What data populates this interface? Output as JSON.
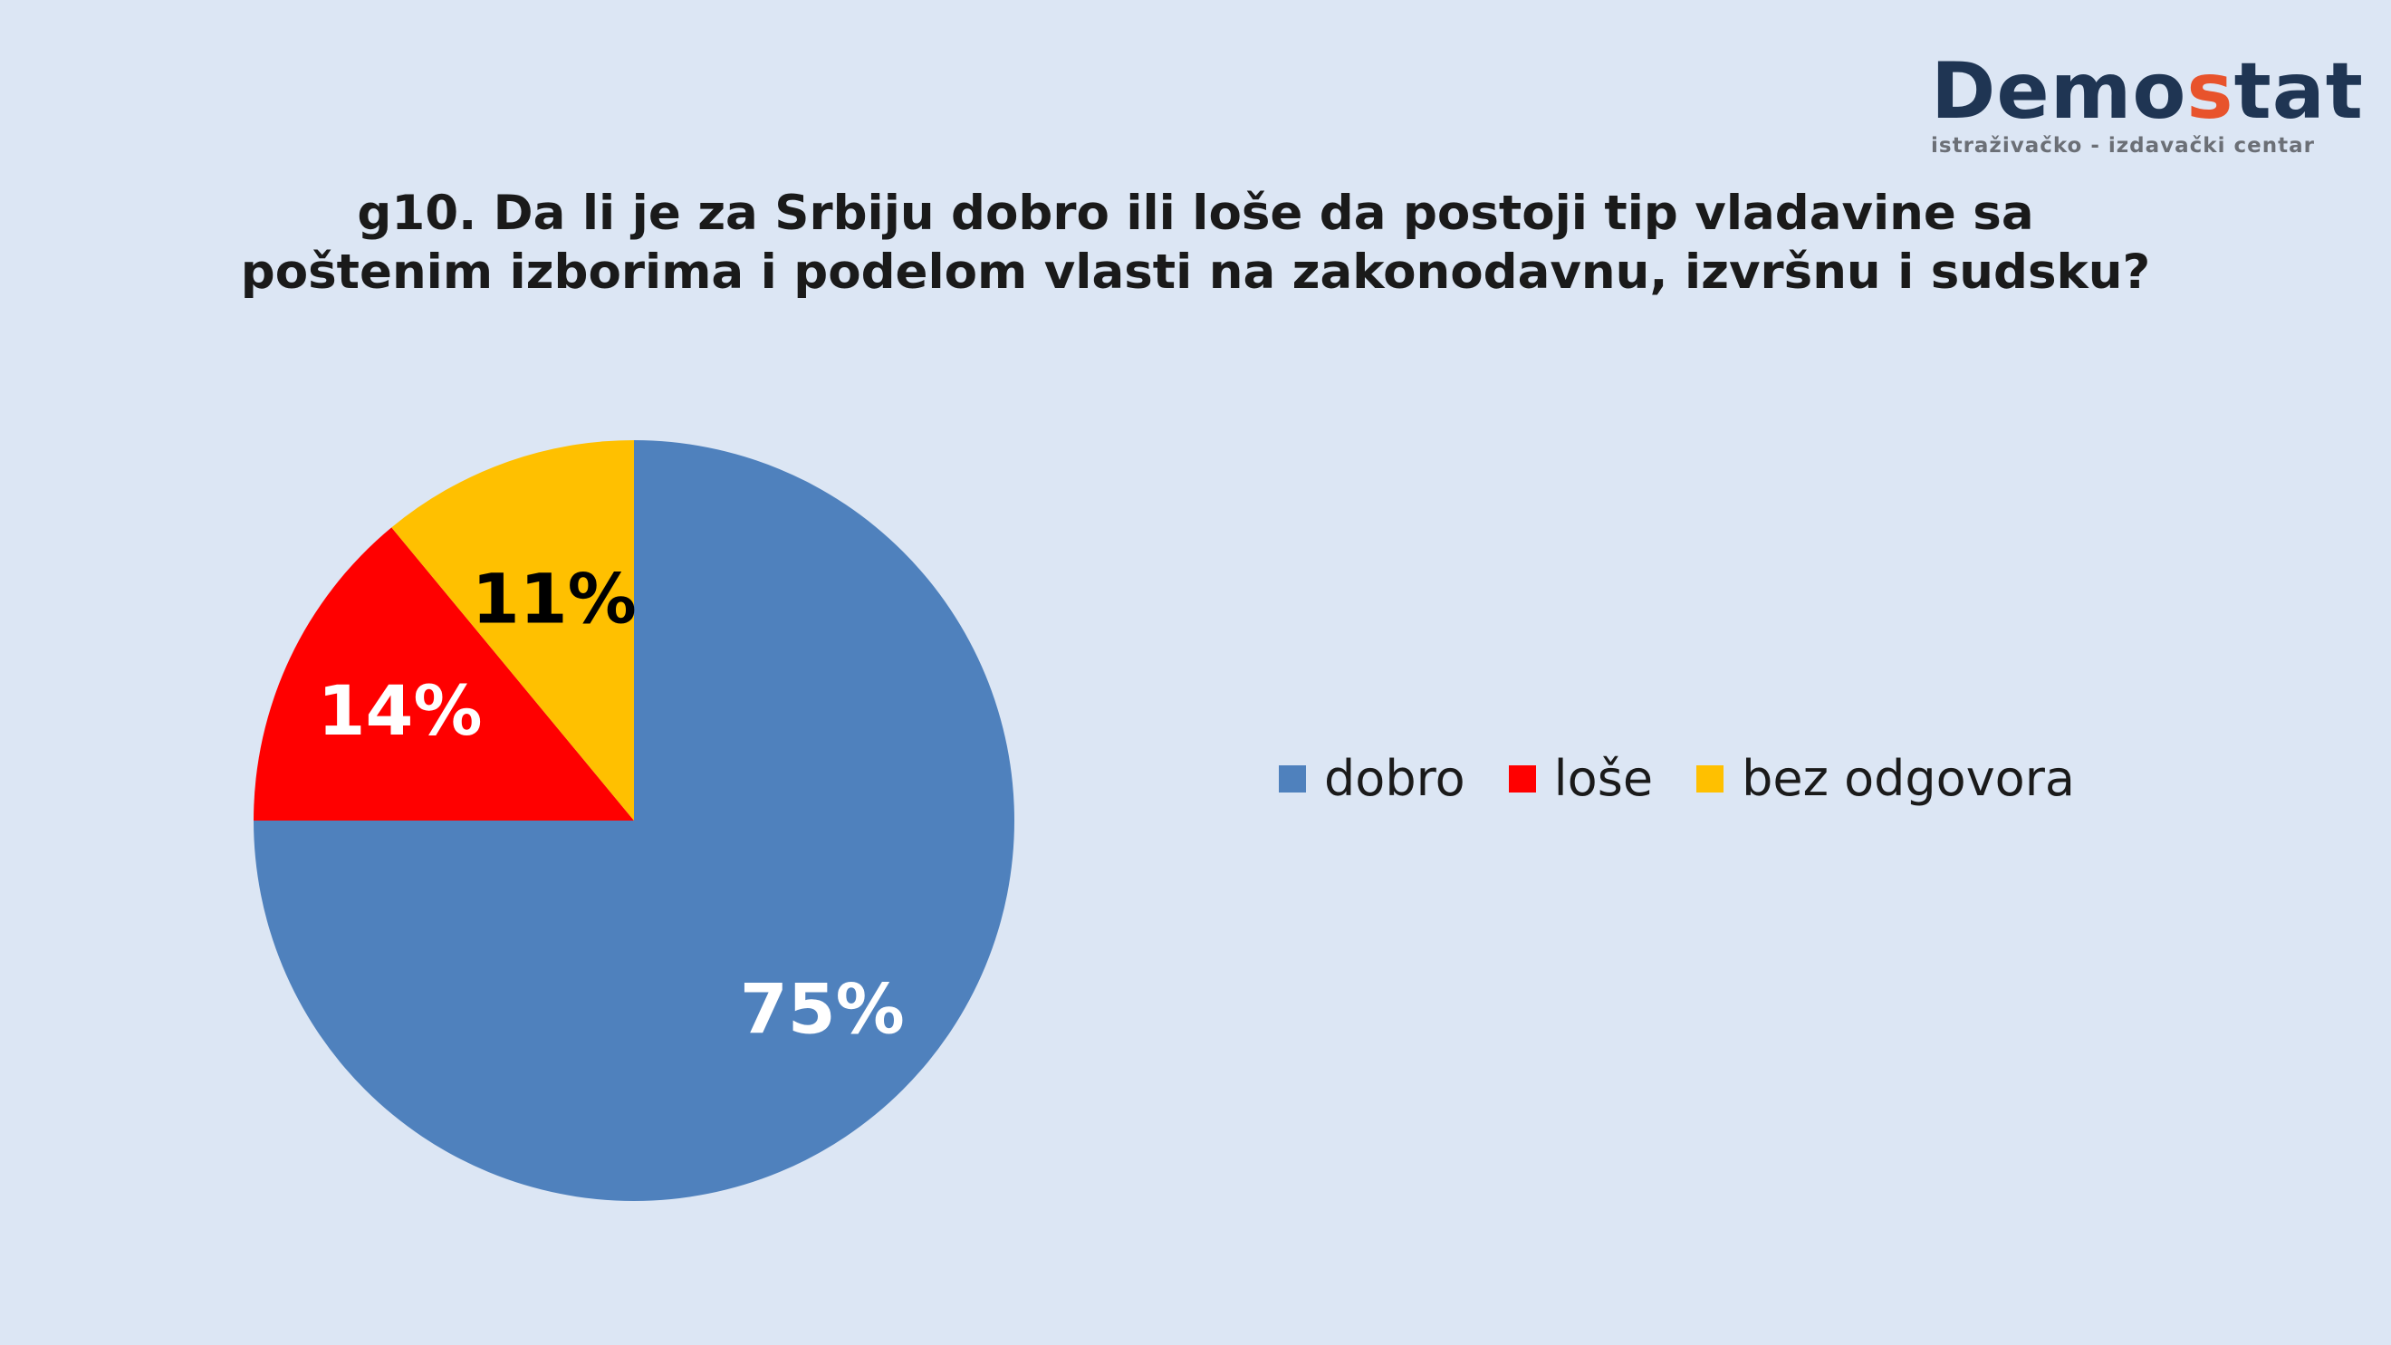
{
  "logo": {
    "name_main": "Demo",
    "name_accent": "s",
    "name_end": "tat",
    "tagline": "istraživačko - izdavački  centar"
  },
  "title_lines": [
    "g10. Da li je za Srbiju dobro ili loše da postoji tip vladavine sa",
    "poštenim izborima i podelom vlasti na zakonodavnu, izvršnu i sudsku?"
  ],
  "chart_data": {
    "type": "pie",
    "title": "g10. Da li je za Srbiju dobro ili loše da postoji tip vladavine sa poštenim izborima i podelom vlasti na zakonodavnu, izvršnu i sudsku?",
    "legend_position": "right",
    "slices": [
      {
        "label": "dobro",
        "value": 75,
        "display": "75%",
        "color": "#4f81bd",
        "label_color": "#ffffff"
      },
      {
        "label": "loše",
        "value": 14,
        "display": "14%",
        "color": "#ff0000",
        "label_color": "#ffffff"
      },
      {
        "label": "bez odgovora",
        "value": 11,
        "display": "11%",
        "color": "#ffc000",
        "label_color": "#000000"
      }
    ]
  }
}
